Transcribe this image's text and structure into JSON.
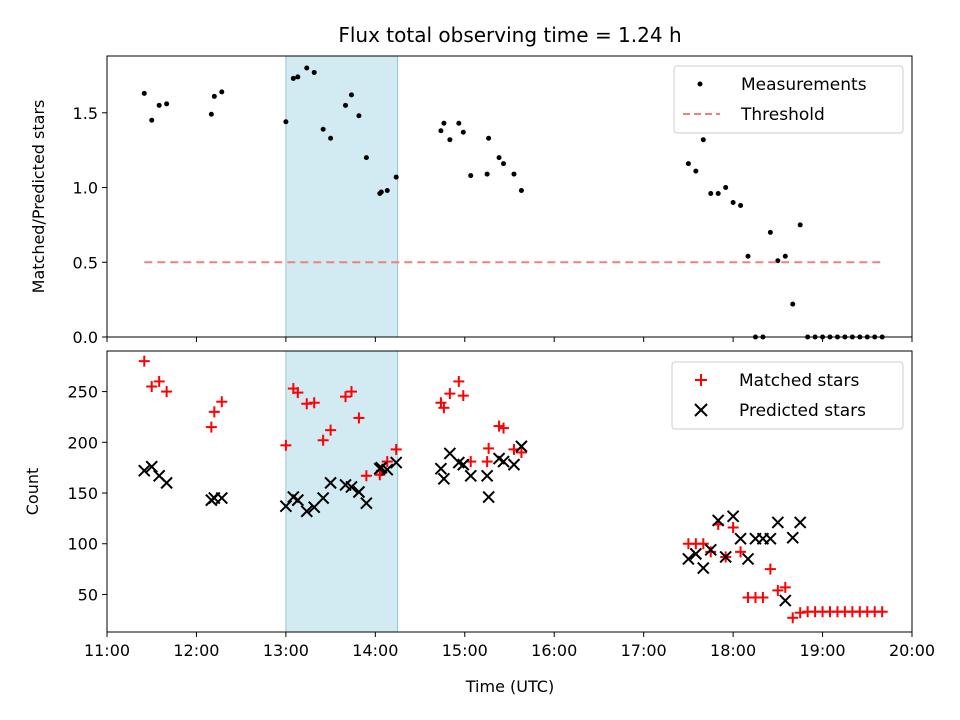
{
  "chart_data": [
    {
      "type": "scatter",
      "title": "Flux total observing time = 1.24 h",
      "xlabel": "",
      "ylabel": "Matched/Predicted stars",
      "xlim": [
        "11:00",
        "20:00"
      ],
      "ylim": [
        0,
        1.88
      ],
      "xticks": [
        "11:00",
        "12:00",
        "13:00",
        "14:00",
        "15:00",
        "16:00",
        "17:00",
        "18:00",
        "19:00",
        "20:00"
      ],
      "xtick_labels_shown": false,
      "yticks": [
        0.0,
        0.5,
        1.0,
        1.5
      ],
      "ytick_labels": [
        "0.0",
        "0.5",
        "1.0",
        "1.5"
      ],
      "shaded_interval": {
        "start": "13:00",
        "end": "14:15",
        "color": "#add8e6"
      },
      "legend": {
        "placement": "upper right"
      },
      "series": [
        {
          "name": "Measurements",
          "marker": "dot",
          "color": "#000000",
          "x": [
            "11:25",
            "11:30",
            "11:35",
            "11:40",
            "12:10",
            "12:12",
            "12:17",
            "13:00",
            "13:05",
            "13:08",
            "13:14",
            "13:19",
            "13:25",
            "13:30",
            "13:40",
            "13:44",
            "13:49",
            "13:54",
            "14:03",
            "14:04",
            "14:08",
            "14:14",
            "14:44",
            "14:46",
            "14:50",
            "14:56",
            "14:59",
            "15:04",
            "15:15",
            "15:16",
            "15:23",
            "15:26",
            "15:33",
            "15:38",
            "17:30",
            "17:35",
            "17:40",
            "17:45",
            "17:50",
            "17:55",
            "18:00",
            "18:05",
            "18:10",
            "18:15",
            "18:20",
            "18:25",
            "18:30",
            "18:35",
            "18:40",
            "18:45",
            "18:50",
            "18:55",
            "19:00",
            "19:05",
            "19:10",
            "19:15",
            "19:20",
            "19:25",
            "19:30",
            "19:35",
            "19:40"
          ],
          "y": [
            1.63,
            1.45,
            1.55,
            1.56,
            1.49,
            1.61,
            1.64,
            1.44,
            1.73,
            1.74,
            1.8,
            1.77,
            1.39,
            1.33,
            1.55,
            1.62,
            1.48,
            1.2,
            0.96,
            0.97,
            0.98,
            1.07,
            1.38,
            1.43,
            1.32,
            1.43,
            1.37,
            1.08,
            1.09,
            1.33,
            1.2,
            1.16,
            1.09,
            0.98,
            1.16,
            1.11,
            1.32,
            0.96,
            0.96,
            1.0,
            0.9,
            0.88,
            0.54,
            0.0,
            0.0,
            0.7,
            0.51,
            0.54,
            0.22,
            0.75,
            0.0,
            0.0,
            0.0,
            0.0,
            0.0,
            0.0,
            0.0,
            0.0,
            0.0,
            0.0,
            0.0
          ]
        },
        {
          "name": "Threshold",
          "marker": "dashed-line",
          "color": "#f08080",
          "x": [
            "11:25",
            "19:40"
          ],
          "y": [
            0.5,
            0.5
          ]
        }
      ]
    },
    {
      "type": "scatter",
      "title": "",
      "xlabel": "Time (UTC)",
      "ylabel": "Count",
      "xlim": [
        "11:00",
        "20:00"
      ],
      "ylim": [
        13,
        290
      ],
      "xticks": [
        "11:00",
        "12:00",
        "13:00",
        "14:00",
        "15:00",
        "16:00",
        "17:00",
        "18:00",
        "19:00",
        "20:00"
      ],
      "xtick_labels": [
        "11:00",
        "12:00",
        "13:00",
        "14:00",
        "15:00",
        "16:00",
        "17:00",
        "18:00",
        "19:00",
        "20:00"
      ],
      "yticks": [
        50,
        100,
        150,
        200,
        250
      ],
      "ytick_labels": [
        "50",
        "100",
        "150",
        "200",
        "250"
      ],
      "shaded_interval": {
        "start": "13:00",
        "end": "14:15",
        "color": "#add8e6"
      },
      "legend": {
        "placement": "upper right"
      },
      "series": [
        {
          "name": "Matched stars",
          "marker": "plus",
          "color": "#ff0000",
          "x": [
            "11:25",
            "11:30",
            "11:35",
            "11:40",
            "12:10",
            "12:12",
            "12:17",
            "13:00",
            "13:05",
            "13:08",
            "13:14",
            "13:19",
            "13:25",
            "13:30",
            "13:40",
            "13:44",
            "13:49",
            "13:54",
            "14:03",
            "14:04",
            "14:08",
            "14:14",
            "14:44",
            "14:46",
            "14:50",
            "14:56",
            "14:59",
            "15:04",
            "15:15",
            "15:16",
            "15:23",
            "15:26",
            "15:33",
            "15:38",
            "17:30",
            "17:35",
            "17:40",
            "17:45",
            "17:50",
            "17:55",
            "18:00",
            "18:05",
            "18:10",
            "18:15",
            "18:20",
            "18:25",
            "18:30",
            "18:35",
            "18:40",
            "18:45",
            "18:50",
            "18:55",
            "19:00",
            "19:05",
            "19:10",
            "19:15",
            "19:20",
            "19:25",
            "19:30",
            "19:35",
            "19:40"
          ],
          "y": [
            280,
            255,
            260,
            250,
            215,
            230,
            240,
            197,
            253,
            249,
            238,
            239,
            202,
            212,
            245,
            250,
            224,
            167,
            168,
            172,
            181,
            193,
            239,
            234,
            248,
            260,
            246,
            181,
            181,
            194,
            216,
            214,
            193,
            190,
            100,
            100,
            100,
            92,
            119,
            87,
            116,
            92,
            47,
            47,
            47,
            75,
            54,
            57,
            27,
            32,
            33,
            33,
            33,
            33,
            33,
            33,
            33,
            33,
            33,
            33,
            33
          ]
        },
        {
          "name": "Predicted stars",
          "marker": "x",
          "color": "#000000",
          "x": [
            "11:25",
            "11:30",
            "11:35",
            "11:40",
            "12:10",
            "12:12",
            "12:17",
            "13:00",
            "13:05",
            "13:08",
            "13:14",
            "13:19",
            "13:25",
            "13:30",
            "13:40",
            "13:44",
            "13:49",
            "13:54",
            "14:03",
            "14:04",
            "14:08",
            "14:14",
            "14:44",
            "14:46",
            "14:50",
            "14:56",
            "14:59",
            "15:04",
            "15:15",
            "15:16",
            "15:23",
            "15:26",
            "15:33",
            "15:38",
            "17:30",
            "17:35",
            "17:40",
            "17:45",
            "17:50",
            "17:55",
            "18:00",
            "18:05",
            "18:10",
            "18:15",
            "18:20",
            "18:25",
            "18:30",
            "18:35",
            "18:40",
            "18:45"
          ],
          "y": [
            172,
            176,
            167,
            160,
            143,
            145,
            145,
            137,
            146,
            143,
            132,
            136,
            145,
            160,
            158,
            156,
            151,
            140,
            174,
            175,
            173,
            180,
            174,
            164,
            189,
            180,
            178,
            167,
            167,
            146,
            184,
            181,
            178,
            196,
            85,
            90,
            76,
            94,
            123,
            87,
            127,
            105,
            85,
            105,
            105,
            105,
            121,
            44,
            106,
            121
          ]
        }
      ]
    }
  ]
}
